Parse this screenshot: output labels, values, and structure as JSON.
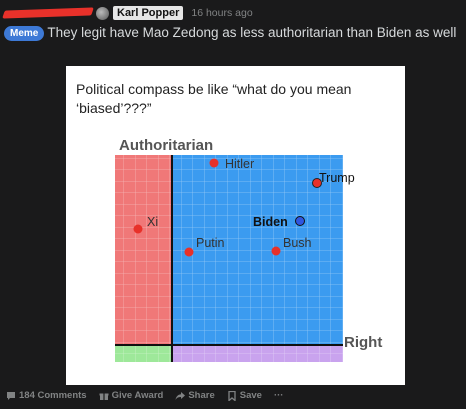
{
  "post": {
    "author": "Karl Popper",
    "time": "16 hours ago",
    "flair": "Meme",
    "title": "They legit have Mao Zedong as less authoritarian than Biden as well"
  },
  "image": {
    "caption": "Political compass be like “what do you mean ‘biased’???”",
    "axis_top": "Authoritarian",
    "axis_right": "Right",
    "points": [
      {
        "label": "Hitler",
        "color": "#e8312a"
      },
      {
        "label": "Trump",
        "color": "#e8312a"
      },
      {
        "label": "Xi",
        "color": "#e8312a"
      },
      {
        "label": "Biden",
        "color": "#2f56e0"
      },
      {
        "label": "Putin",
        "color": "#e8312a"
      },
      {
        "label": "Bush",
        "color": "#e8312a"
      }
    ],
    "colors": {
      "auth_left": "#f07878",
      "auth_right": "#3b9bf0",
      "lib_left": "#9ee89a",
      "lib_right": "#c9a3ee"
    }
  },
  "footer": {
    "comments": "184 Comments",
    "award": "Give Award",
    "share": "Share",
    "save": "Save",
    "more": "···"
  }
}
